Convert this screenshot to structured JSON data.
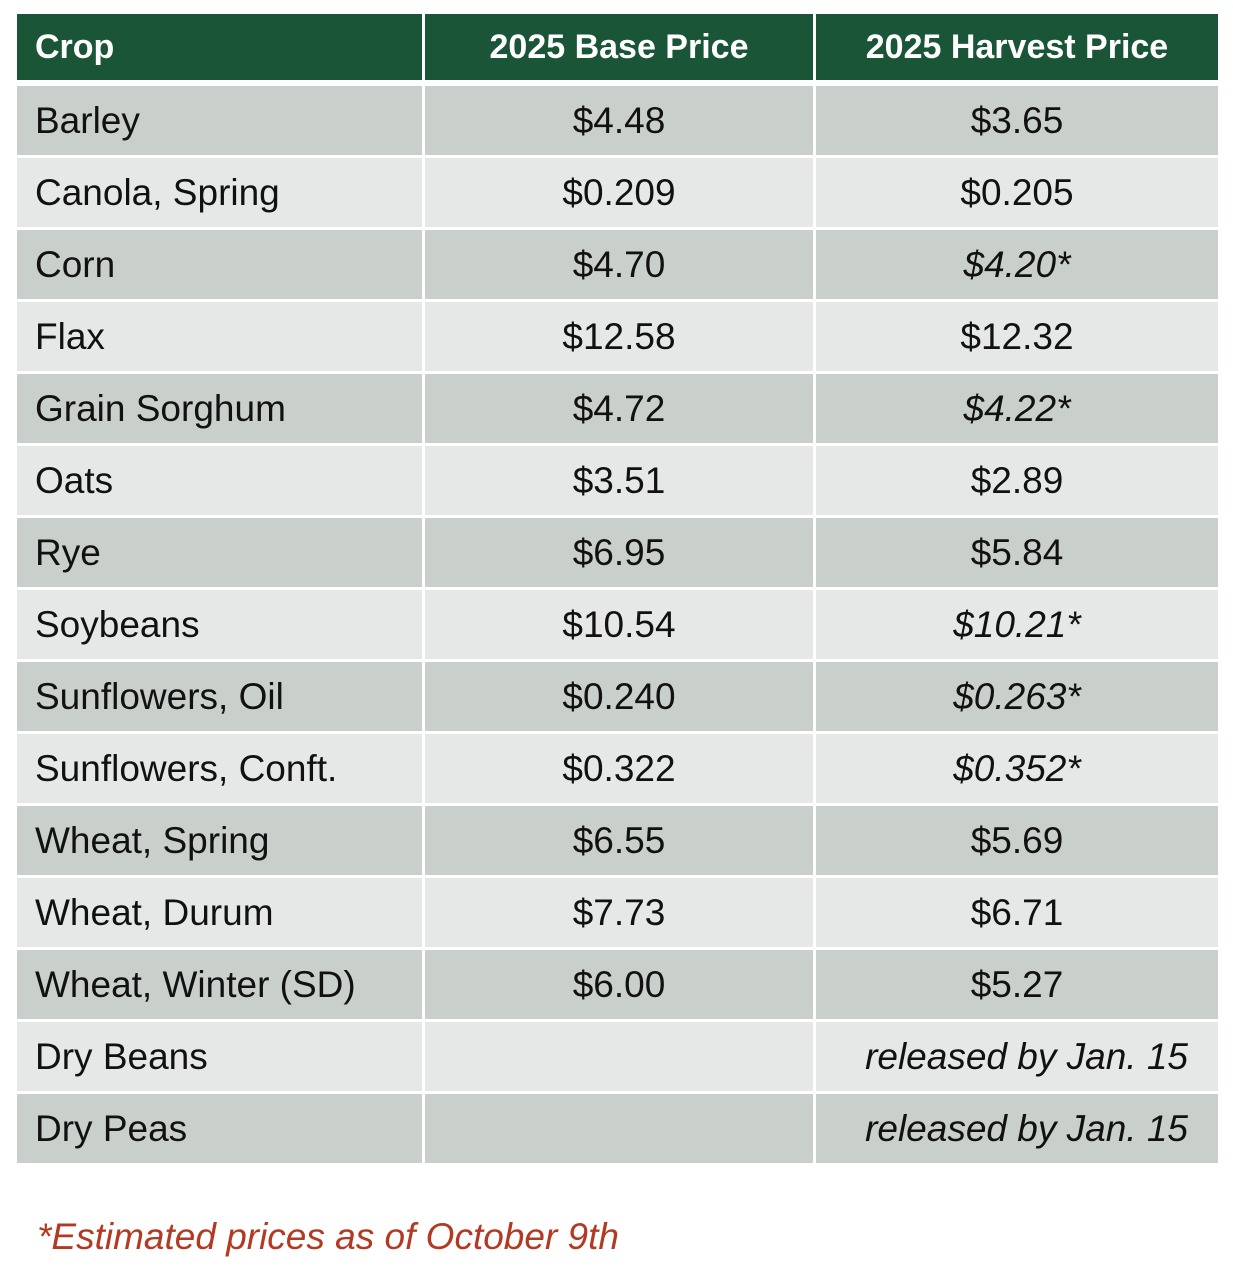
{
  "table": {
    "headers": [
      "Crop",
      "2025 Base Price",
      "2025 Harvest Price"
    ],
    "rows": [
      {
        "crop": "Barley",
        "base": "$4.48",
        "harvest": "$3.65",
        "estimated": false
      },
      {
        "crop": "Canola, Spring",
        "base": "$0.209",
        "harvest": "$0.205",
        "estimated": false
      },
      {
        "crop": "Corn",
        "base": "$4.70",
        "harvest": "$4.20*",
        "estimated": true
      },
      {
        "crop": "Flax",
        "base": "$12.58",
        "harvest": "$12.32",
        "estimated": false
      },
      {
        "crop": "Grain Sorghum",
        "base": "$4.72",
        "harvest": "$4.22*",
        "estimated": true
      },
      {
        "crop": "Oats",
        "base": "$3.51",
        "harvest": "$2.89",
        "estimated": false
      },
      {
        "crop": "Rye",
        "base": "$6.95",
        "harvest": "$5.84",
        "estimated": false
      },
      {
        "crop": "Soybeans",
        "base": "$10.54",
        "harvest": "$10.21*",
        "estimated": true
      },
      {
        "crop": "Sunflowers, Oil",
        "base": "$0.240",
        "harvest": "$0.263*",
        "estimated": true
      },
      {
        "crop": "Sunflowers, Conft.",
        "base": "$0.322",
        "harvest": "$0.352*",
        "estimated": true
      },
      {
        "crop": "Wheat, Spring",
        "base": "$6.55",
        "harvest": "$5.69",
        "estimated": false
      },
      {
        "crop": "Wheat, Durum",
        "base": "$7.73",
        "harvest": "$6.71",
        "estimated": false
      },
      {
        "crop": "Wheat, Winter (SD)",
        "base": "$6.00",
        "harvest": "$5.27",
        "estimated": false
      },
      {
        "crop": "Dry Beans",
        "base": "",
        "harvest": "released by Jan. 15",
        "estimated": false,
        "note": true
      },
      {
        "crop": "Dry Peas",
        "base": "",
        "harvest": "released by Jan. 15",
        "estimated": false,
        "note": true
      }
    ]
  },
  "footnote": "*Estimated prices as of October 9th",
  "colors": {
    "header_bg": "#1b5538",
    "row_dark": "#c9cfcb",
    "row_light": "#e6e8e7",
    "estimate_text": "#b23a22"
  }
}
